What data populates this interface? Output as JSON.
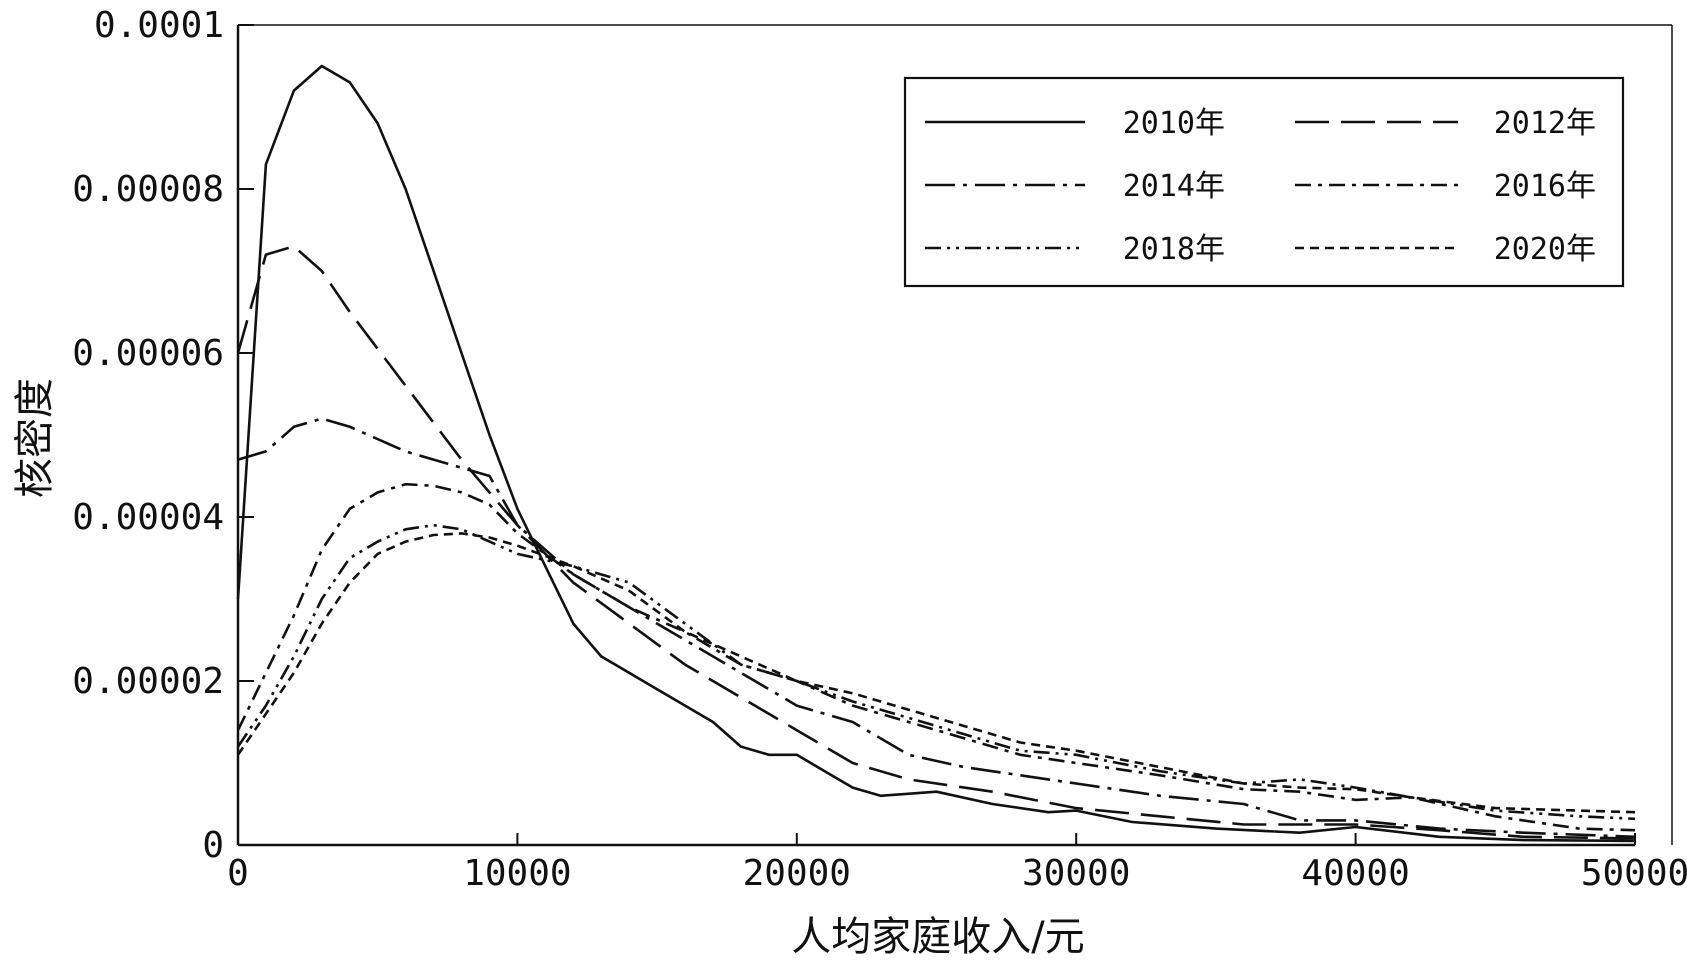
{
  "chart_data": {
    "type": "line",
    "title": "",
    "xlabel": "人均家庭收入/元",
    "ylabel": "核密度",
    "xlim": [
      0,
      50000
    ],
    "ylim": [
      0,
      0.0001
    ],
    "xticks": [
      0,
      10000,
      20000,
      30000,
      40000,
      50000
    ],
    "xtick_labels": [
      "0",
      "10000",
      "20000",
      "30000",
      "40000",
      "50000"
    ],
    "yticks": [
      0,
      2e-05,
      4e-05,
      6e-05,
      8e-05,
      0.0001
    ],
    "ytick_labels": [
      "0",
      "0.00002",
      "0.00004",
      "0.00006",
      "0.00008",
      "0.0001"
    ],
    "grid": false,
    "legend_position": "top-right",
    "series": [
      {
        "name": "2010年",
        "dash": "solid",
        "points": [
          [
            0,
            3e-05
          ],
          [
            1000,
            8.3e-05
          ],
          [
            2000,
            9.2e-05
          ],
          [
            3000,
            9.5e-05
          ],
          [
            4000,
            9.3e-05
          ],
          [
            5000,
            8.8e-05
          ],
          [
            6000,
            8e-05
          ],
          [
            7000,
            7e-05
          ],
          [
            8000,
            6e-05
          ],
          [
            9000,
            5e-05
          ],
          [
            10000,
            4.1e-05
          ],
          [
            11000,
            3.4e-05
          ],
          [
            12000,
            2.7e-05
          ],
          [
            13000,
            2.3e-05
          ],
          [
            15000,
            1.9e-05
          ],
          [
            17000,
            1.5e-05
          ],
          [
            18000,
            1.2e-05
          ],
          [
            19000,
            1.1e-05
          ],
          [
            20000,
            1.1e-05
          ],
          [
            21000,
            9e-06
          ],
          [
            22000,
            7e-06
          ],
          [
            23000,
            6e-06
          ],
          [
            25000,
            6.5e-06
          ],
          [
            27000,
            5e-06
          ],
          [
            29000,
            4e-06
          ],
          [
            30000,
            4.2e-06
          ],
          [
            32000,
            2.8e-06
          ],
          [
            35000,
            2e-06
          ],
          [
            38000,
            1.5e-06
          ],
          [
            40000,
            2.2e-06
          ],
          [
            43000,
            1e-06
          ],
          [
            46000,
            6e-07
          ],
          [
            50000,
            5e-07
          ]
        ]
      },
      {
        "name": "2012年",
        "dash": "long-dash",
        "points": [
          [
            0,
            6e-05
          ],
          [
            1000,
            7.2e-05
          ],
          [
            2000,
            7.3e-05
          ],
          [
            3000,
            7e-05
          ],
          [
            4000,
            6.5e-05
          ],
          [
            6000,
            5.6e-05
          ],
          [
            8000,
            4.7e-05
          ],
          [
            10000,
            3.9e-05
          ],
          [
            12000,
            3.2e-05
          ],
          [
            14000,
            2.7e-05
          ],
          [
            16000,
            2.2e-05
          ],
          [
            18000,
            1.8e-05
          ],
          [
            20000,
            1.4e-05
          ],
          [
            22000,
            1e-05
          ],
          [
            24000,
            8e-06
          ],
          [
            27000,
            6.5e-06
          ],
          [
            30000,
            4.5e-06
          ],
          [
            33000,
            3.5e-06
          ],
          [
            36000,
            2.5e-06
          ],
          [
            40000,
            2.5e-06
          ],
          [
            43000,
            1.8e-06
          ],
          [
            46000,
            1e-06
          ],
          [
            50000,
            8e-07
          ]
        ]
      },
      {
        "name": "2014年",
        "dash": "long-dash-dot",
        "points": [
          [
            0,
            4.7e-05
          ],
          [
            1000,
            4.8e-05
          ],
          [
            2000,
            5.1e-05
          ],
          [
            3000,
            5.2e-05
          ],
          [
            4000,
            5.1e-05
          ],
          [
            6000,
            4.8e-05
          ],
          [
            8000,
            4.6e-05
          ],
          [
            9000,
            4.5e-05
          ],
          [
            10000,
            3.9e-05
          ],
          [
            12000,
            3.3e-05
          ],
          [
            14000,
            2.9e-05
          ],
          [
            16000,
            2.5e-05
          ],
          [
            18000,
            2.1e-05
          ],
          [
            20000,
            1.7e-05
          ],
          [
            22000,
            1.5e-05
          ],
          [
            24000,
            1.1e-05
          ],
          [
            26000,
            9.5e-06
          ],
          [
            28000,
            8.5e-06
          ],
          [
            30000,
            7.5e-06
          ],
          [
            33000,
            6e-06
          ],
          [
            36000,
            5e-06
          ],
          [
            38000,
            3e-06
          ],
          [
            40000,
            3e-06
          ],
          [
            43000,
            2e-06
          ],
          [
            46000,
            1.5e-06
          ],
          [
            50000,
            1e-06
          ]
        ]
      },
      {
        "name": "2016年",
        "dash": "dash-dot",
        "points": [
          [
            0,
            1.4e-05
          ],
          [
            1000,
            2.1e-05
          ],
          [
            2000,
            2.8e-05
          ],
          [
            3000,
            3.6e-05
          ],
          [
            4000,
            4.1e-05
          ],
          [
            5000,
            4.3e-05
          ],
          [
            6000,
            4.4e-05
          ],
          [
            7000,
            4.38e-05
          ],
          [
            8000,
            4.3e-05
          ],
          [
            9000,
            4.15e-05
          ],
          [
            10000,
            3.8e-05
          ],
          [
            12000,
            3.3e-05
          ],
          [
            14000,
            2.9e-05
          ],
          [
            16000,
            2.6e-05
          ],
          [
            18000,
            2.2e-05
          ],
          [
            20000,
            2e-05
          ],
          [
            22000,
            1.7e-05
          ],
          [
            24000,
            1.5e-05
          ],
          [
            26000,
            1.3e-05
          ],
          [
            28000,
            1.1e-05
          ],
          [
            30000,
            1e-05
          ],
          [
            33000,
            8.5e-06
          ],
          [
            36000,
            6.8e-06
          ],
          [
            38000,
            6.5e-06
          ],
          [
            40000,
            5.5e-06
          ],
          [
            42000,
            5.8e-06
          ],
          [
            45000,
            3.5e-06
          ],
          [
            48000,
            2e-06
          ],
          [
            50000,
            1.8e-06
          ]
        ]
      },
      {
        "name": "2018年",
        "dash": "dash-dot-dot",
        "points": [
          [
            0,
            1.2e-05
          ],
          [
            1000,
            1.7e-05
          ],
          [
            2000,
            2.3e-05
          ],
          [
            3000,
            3e-05
          ],
          [
            4000,
            3.5e-05
          ],
          [
            5000,
            3.7e-05
          ],
          [
            6000,
            3.85e-05
          ],
          [
            7000,
            3.9e-05
          ],
          [
            8000,
            3.85e-05
          ],
          [
            9000,
            3.7e-05
          ],
          [
            10000,
            3.55e-05
          ],
          [
            12000,
            3.4e-05
          ],
          [
            14000,
            3.2e-05
          ],
          [
            16000,
            2.7e-05
          ],
          [
            18000,
            2.2e-05
          ],
          [
            20000,
            2e-05
          ],
          [
            22000,
            1.75e-05
          ],
          [
            24000,
            1.55e-05
          ],
          [
            26000,
            1.35e-05
          ],
          [
            28000,
            1.15e-05
          ],
          [
            30000,
            1.1e-05
          ],
          [
            33000,
            9e-06
          ],
          [
            36000,
            7.5e-06
          ],
          [
            38000,
            8e-06
          ],
          [
            40000,
            7e-06
          ],
          [
            42000,
            5.8e-06
          ],
          [
            45000,
            4.2e-06
          ],
          [
            48000,
            3.5e-06
          ],
          [
            50000,
            3.2e-06
          ]
        ]
      },
      {
        "name": "2020年",
        "dash": "short-dash",
        "points": [
          [
            0,
            1.1e-05
          ],
          [
            1000,
            1.6e-05
          ],
          [
            2000,
            2.1e-05
          ],
          [
            3000,
            2.7e-05
          ],
          [
            4000,
            3.2e-05
          ],
          [
            5000,
            3.55e-05
          ],
          [
            6000,
            3.7e-05
          ],
          [
            7000,
            3.78e-05
          ],
          [
            8000,
            3.8e-05
          ],
          [
            9000,
            3.75e-05
          ],
          [
            10000,
            3.65e-05
          ],
          [
            12000,
            3.4e-05
          ],
          [
            14000,
            3.1e-05
          ],
          [
            16000,
            2.6e-05
          ],
          [
            18000,
            2.3e-05
          ],
          [
            20000,
            2e-05
          ],
          [
            22000,
            1.85e-05
          ],
          [
            24000,
            1.65e-05
          ],
          [
            26000,
            1.45e-05
          ],
          [
            28000,
            1.25e-05
          ],
          [
            30000,
            1.15e-05
          ],
          [
            33000,
            9.5e-06
          ],
          [
            36000,
            7.5e-06
          ],
          [
            38000,
            7e-06
          ],
          [
            40000,
            6.8e-06
          ],
          [
            42000,
            5.8e-06
          ],
          [
            45000,
            4.5e-06
          ],
          [
            48000,
            4.2e-06
          ],
          [
            50000,
            4e-06
          ]
        ]
      }
    ]
  }
}
